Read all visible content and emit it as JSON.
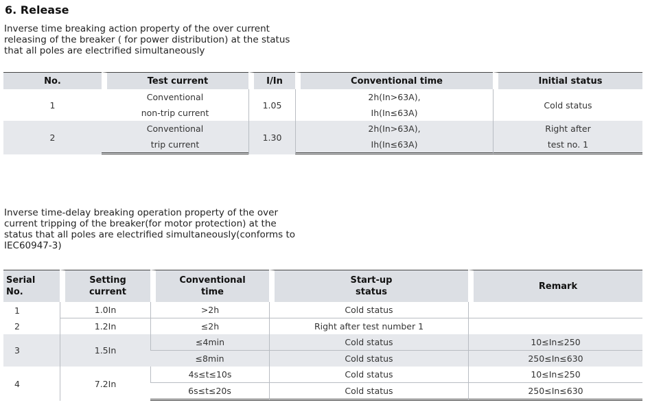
{
  "section_title": "6. Release",
  "para1": [
    "Inverse time breaking action property of the over current",
    "releasing of the breaker ( for power distribution) at the status",
    "that all poles are electrified simultaneously"
  ],
  "table1": {
    "headers": [
      "No.",
      "Test current",
      "I/In",
      "Conventional time",
      "Initial status"
    ],
    "rows": [
      {
        "no": "1",
        "test_current": [
          "Conventional",
          "non-trip current"
        ],
        "ratio": "1.05",
        "time": [
          "2h(In>63A),",
          "Ih(In≤63A)"
        ],
        "status": "Cold status"
      },
      {
        "no": "2",
        "test_current": [
          "Conventional",
          "trip current"
        ],
        "ratio": "1.30",
        "time": [
          "2h(In>63A),",
          "Ih(In≤63A)"
        ],
        "status": [
          "Right after",
          "test no. 1"
        ]
      }
    ]
  },
  "para2": [
    "Inverse time-delay breaking operation property of the over",
    "current tripping of the breaker(for motor protection) at the",
    "status that all poles are electrified simultaneously(conforms to",
    "IEC60947-3)"
  ],
  "table2": {
    "headers": [
      [
        "Serial",
        "No."
      ],
      [
        "Setting",
        "current"
      ],
      [
        "Conventional",
        "time"
      ],
      [
        "Start-up",
        "status"
      ],
      [
        "Remark"
      ]
    ],
    "rows": [
      {
        "serial": "1",
        "setting": "1.0In",
        "time": ">2h",
        "status": "Cold status",
        "remark": ""
      },
      {
        "serial": "2",
        "setting": "1.2In",
        "time": "≤2h",
        "status": "Right after test number 1",
        "remark": ""
      },
      {
        "serial": "3",
        "setting": "1.5In",
        "sub": [
          {
            "time": "≤4min",
            "status": "Cold status",
            "remark": "10≤In≤250"
          },
          {
            "time": "≤8min",
            "status": "Cold status",
            "remark": "250≤In≤630"
          }
        ]
      },
      {
        "serial": "4",
        "setting": "7.2In",
        "sub": [
          {
            "time": "4s≤t≤10s",
            "status": "Cold status",
            "remark": "10≤In≤250"
          },
          {
            "time": "6s≤t≤20s",
            "status": "Cold status",
            "remark": "250≤In≤630"
          }
        ]
      }
    ]
  }
}
